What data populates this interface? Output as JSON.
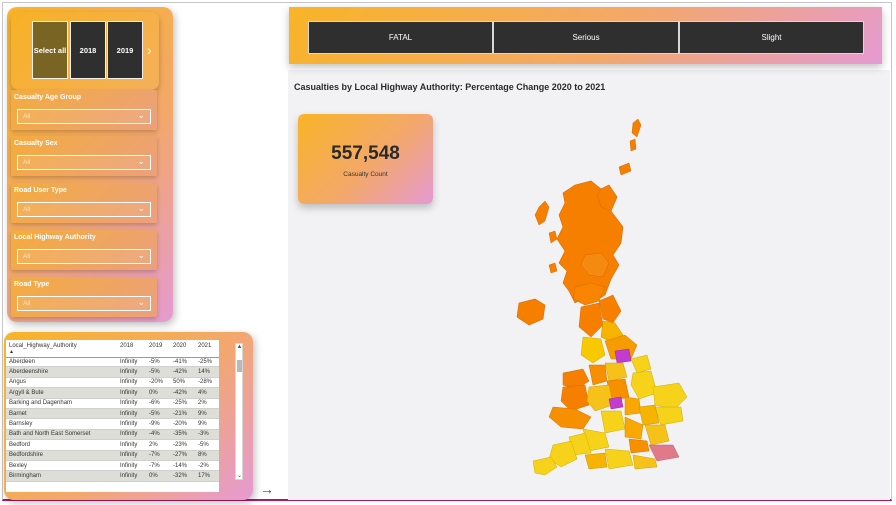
{
  "year_slicer": {
    "buttons": [
      {
        "label": "Select all",
        "selected": true
      },
      {
        "label": "2018",
        "selected": false
      },
      {
        "label": "2019",
        "selected": false
      }
    ],
    "next_icon": "chevron-right-icon"
  },
  "filters": [
    {
      "label": "Casualty Age Group",
      "value": "All"
    },
    {
      "label": "Casualty Sex",
      "value": "All"
    },
    {
      "label": "Road User Type",
      "value": "All"
    },
    {
      "label": "Local Highway Authority",
      "value": "All"
    },
    {
      "label": "Road Type",
      "value": "All"
    }
  ],
  "severity": [
    "FATAL",
    "Serious",
    "Slight"
  ],
  "map_title": "Casualties by Local Highway Authority: Percentage Change 2020 to 2021",
  "kpi": {
    "value": "557,548",
    "label": "Casualty Count"
  },
  "table": {
    "headers": [
      "Local_Highway_Authority",
      "2018",
      "2019",
      "2020",
      "2021"
    ],
    "rows": [
      [
        "Aberdeen",
        "Infinity",
        "-5%",
        "-41%",
        "-25%"
      ],
      [
        "Aberdeenshire",
        "Infinity",
        "-5%",
        "-42%",
        "14%"
      ],
      [
        "Angus",
        "Infinity",
        "-20%",
        "50%",
        "-28%"
      ],
      [
        "Argyll & Bute",
        "Infinity",
        "0%",
        "-42%",
        "4%"
      ],
      [
        "Barking and Dagenham",
        "Infinity",
        "-6%",
        "-25%",
        "2%"
      ],
      [
        "Barnet",
        "Infinity",
        "-5%",
        "-21%",
        "9%"
      ],
      [
        "Barnsley",
        "Infinity",
        "-9%",
        "-20%",
        "9%"
      ],
      [
        "Bath and North East Somerset",
        "Infinity",
        "-4%",
        "-35%",
        "-3%"
      ],
      [
        "Bedford",
        "Infinity",
        "2%",
        "-23%",
        "-5%"
      ],
      [
        "Bedfordshire",
        "Infinity",
        "-7%",
        "-27%",
        "8%"
      ],
      [
        "Bexley",
        "Infinity",
        "-7%",
        "-14%",
        "-2%"
      ],
      [
        "Birmingham",
        "Infinity",
        "0%",
        "-32%",
        "17%"
      ]
    ]
  },
  "colors": {
    "accent_yellow": "#f9b427",
    "accent_pink": "#e59ad3",
    "button_dark": "#2f2f2f",
    "selected_year": "#7a6423",
    "map_orange": "#f77f00",
    "map_yellow": "#f6d21a",
    "map_magenta": "#c23ccf",
    "map_pink": "#e07a8a"
  }
}
